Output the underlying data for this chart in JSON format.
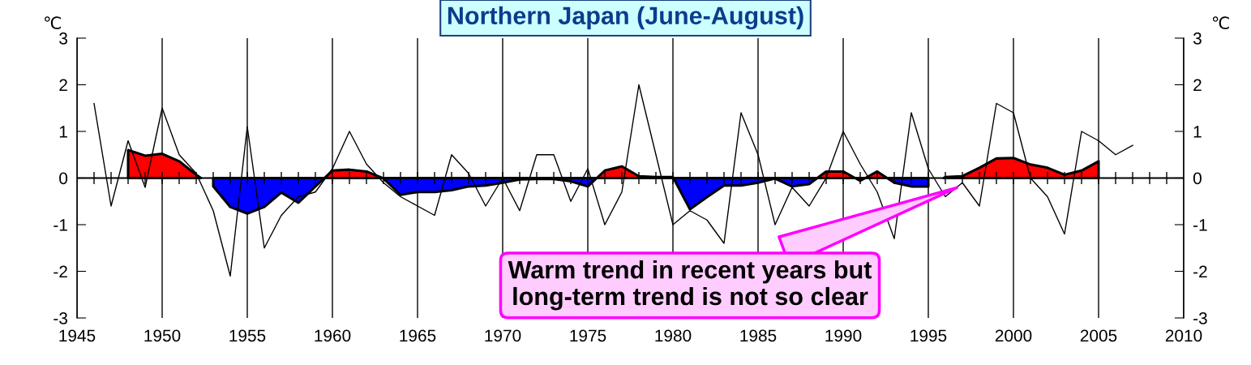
{
  "chart_data": {
    "type": "line",
    "title": "Northern Japan (June-August)",
    "ylabel": "℃",
    "y2label": "℃",
    "xlim": [
      1945,
      2010
    ],
    "xticks": [
      1945,
      1950,
      1955,
      1960,
      1965,
      1970,
      1975,
      1980,
      1985,
      1990,
      1995,
      2000,
      2005,
      2010
    ],
    "ylim": [
      -3,
      3
    ],
    "yticks": [
      -3,
      -2,
      -1,
      0,
      1,
      2,
      3
    ],
    "y2lim": [
      -3,
      3
    ],
    "y2ticks": [
      -3,
      -2,
      -1,
      0,
      1,
      2,
      3
    ],
    "grid": "x",
    "marker": "none",
    "line_style": "solid",
    "ref_lines": [
      {
        "axis": "y",
        "value": 0,
        "color": "#000000"
      }
    ],
    "annotations": [
      {
        "text": "Warm trend in recent years but\nlong-term trend is not so clear",
        "x": 1996.8,
        "y": -0.19
      }
    ],
    "series": [
      {
        "color": "#000000",
        "x": [
          1946,
          1947,
          1948,
          1949,
          1950,
          1951,
          1952,
          1953,
          1954,
          1955,
          1956,
          1957,
          1958,
          1959,
          1960,
          1961,
          1962,
          1963,
          1964,
          1965,
          1966,
          1967,
          1968,
          1969,
          1970,
          1971,
          1972,
          1973,
          1974,
          1975,
          1976,
          1977,
          1978,
          1979,
          1980,
          1981,
          1982,
          1983,
          1984,
          1985,
          1986,
          1987,
          1988,
          1989,
          1990,
          1991,
          1992,
          1993,
          1994,
          1995,
          1996,
          1997,
          1998,
          1999,
          2000,
          2001,
          2002,
          2003,
          2004,
          2005,
          2006,
          2007
        ],
        "values": [
          1.6,
          -0.6,
          0.8,
          -0.2,
          1.5,
          0.5,
          0.1,
          -0.7,
          -2.1,
          1.1,
          -1.5,
          -0.8,
          -0.4,
          -0.3,
          0.2,
          1.0,
          0.3,
          -0.1,
          -0.4,
          -0.6,
          -0.8,
          0.5,
          0.1,
          -0.6,
          0.0,
          -0.7,
          0.5,
          0.5,
          -0.5,
          0.2,
          -1.0,
          -0.3,
          2.0,
          0.5,
          -1.0,
          -0.7,
          -0.9,
          -1.4,
          1.4,
          0.5,
          -1.0,
          -0.2,
          -0.6,
          0.0,
          1.0,
          0.3,
          -0.3,
          -1.3,
          1.4,
          0.2,
          -0.4,
          -0.1,
          -0.6,
          1.6,
          1.4,
          0.0,
          -0.4,
          -1.2,
          1.0,
          0.8,
          0.5,
          0.7
        ]
      },
      {
        "type": "area",
        "color": "#ff0000",
        "x": [
          1948,
          1949,
          1950,
          1951,
          1952,
          1960,
          1961,
          1962,
          1976,
          1977,
          1978,
          1979,
          1980,
          1989,
          1990,
          1992,
          1996,
          1997,
          1998,
          1999,
          2000,
          2001,
          2002,
          2003,
          2004,
          2005
        ],
        "values": [
          0.6,
          0.48,
          0.52,
          0.36,
          0.07,
          0.16,
          0.18,
          0.14,
          0.16,
          0.25,
          0.04,
          0.02,
          0.02,
          0.14,
          0.14,
          0.14,
          0.02,
          0.04,
          0.22,
          0.42,
          0.43,
          0.29,
          0.22,
          0.07,
          0.16,
          0.36
        ]
      },
      {
        "type": "area",
        "color": "#0000ff",
        "x": [
          1953,
          1954,
          1955,
          1956,
          1957,
          1958,
          1959,
          1963,
          1964,
          1965,
          1966,
          1967,
          1968,
          1969,
          1970,
          1971,
          1972,
          1973,
          1974,
          1975,
          1981,
          1982,
          1983,
          1984,
          1985,
          1986,
          1987,
          1988,
          1991,
          1993,
          1994,
          1995
        ],
        "values": [
          -0.18,
          -0.62,
          -0.76,
          -0.62,
          -0.31,
          -0.53,
          -0.18,
          -0.01,
          -0.36,
          -0.3,
          -0.3,
          -0.26,
          -0.18,
          -0.16,
          -0.1,
          -0.03,
          -0.02,
          -0.02,
          -0.07,
          -0.18,
          -0.67,
          -0.41,
          -0.16,
          -0.16,
          -0.1,
          -0.01,
          -0.18,
          -0.13,
          -0.06,
          -0.1,
          -0.18,
          -0.18
        ]
      }
    ]
  }
}
